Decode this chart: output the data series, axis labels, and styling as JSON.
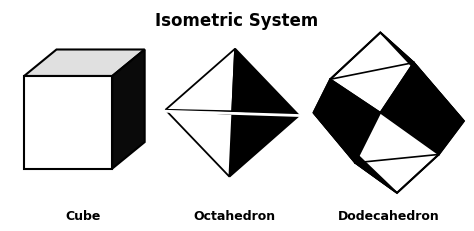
{
  "title": "Isometric System",
  "title_fontsize": 12,
  "labels": [
    "Cube",
    "Octahedron",
    "Dodecahedron"
  ],
  "label_fontsize": 9,
  "background_color": "#ffffff",
  "black": "#000000",
  "white": "#ffffff",
  "top_gray": "#e0e0e0",
  "right_dark": "#0a0a0a"
}
